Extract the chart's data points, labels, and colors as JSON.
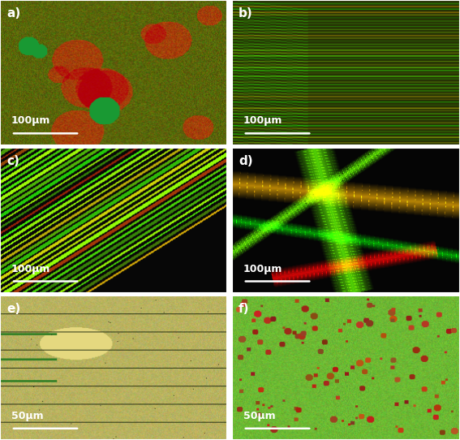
{
  "labels": [
    "a)",
    "b)",
    "c)",
    "d)",
    "e)",
    "f)"
  ],
  "scale_bars": [
    "100μm",
    "100μm",
    "100μm",
    "100μm",
    "50μm",
    "50μm"
  ],
  "label_color": "white",
  "scale_bar_color": "white",
  "border_color": "white",
  "border_width": 1.5,
  "fig_bg": "white",
  "label_fontsize": 11,
  "scalebar_fontsize": 9
}
